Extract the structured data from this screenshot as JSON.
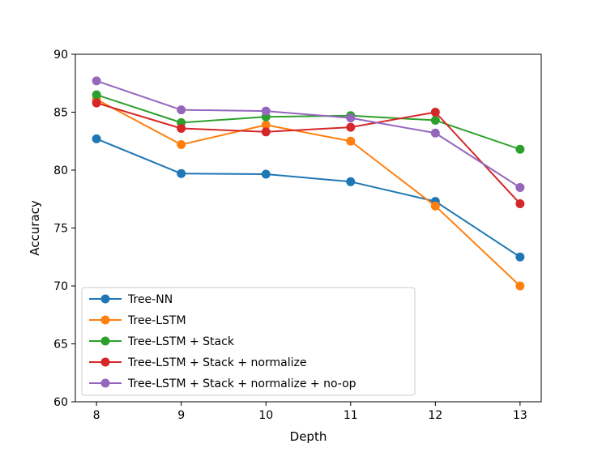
{
  "chart_data": {
    "type": "line",
    "title": "",
    "xlabel": "Depth",
    "ylabel": "Accuracy",
    "x": [
      8,
      9,
      10,
      11,
      12,
      13
    ],
    "xticks": [
      "8",
      "9",
      "10",
      "11",
      "12",
      "13"
    ],
    "yticks": [
      "60",
      "65",
      "70",
      "75",
      "80",
      "85",
      "90"
    ],
    "xlim": [
      7.75,
      13.25
    ],
    "ylim": [
      60,
      90
    ],
    "grid": false,
    "legend_position": "lower-left",
    "series": [
      {
        "name": "Tree-NN",
        "color": "#1f77b4",
        "values": [
          82.7,
          79.7,
          79.65,
          79.0,
          77.3,
          72.5
        ]
      },
      {
        "name": "Tree-LSTM",
        "color": "#ff7f0e",
        "values": [
          86.1,
          82.2,
          83.9,
          82.5,
          76.9,
          70.0
        ]
      },
      {
        "name": "Tree-LSTM + Stack",
        "color": "#2ca02c",
        "values": [
          86.5,
          84.1,
          84.6,
          84.7,
          84.3,
          81.8
        ]
      },
      {
        "name": "Tree-LSTM + Stack + normalize",
        "color": "#d62728",
        "values": [
          85.8,
          83.6,
          83.3,
          83.7,
          85.0,
          77.1
        ]
      },
      {
        "name": "Tree-LSTM + Stack + normalize + no-op",
        "color": "#9467bd",
        "values": [
          87.7,
          85.2,
          85.1,
          84.5,
          83.2,
          78.5
        ]
      }
    ]
  }
}
